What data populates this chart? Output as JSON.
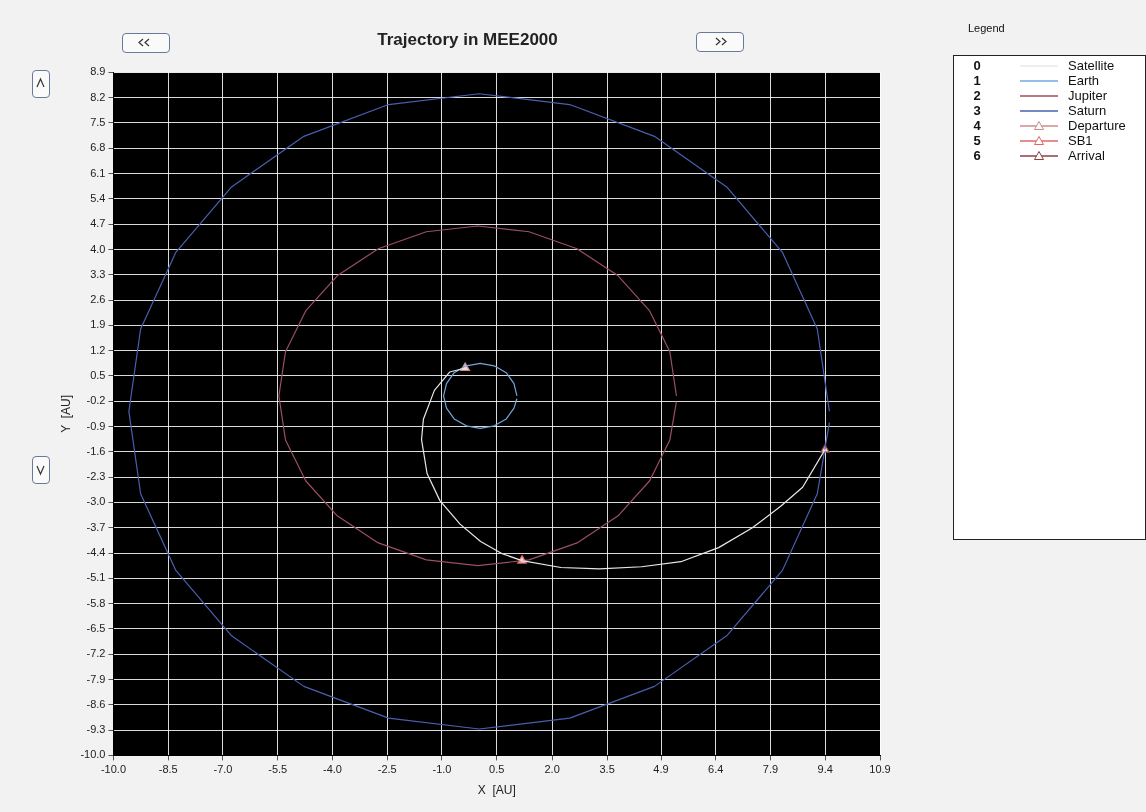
{
  "chart_data": {
    "type": "line",
    "title": "Trajectory in MEE2000",
    "xlabel": "X  [AU]",
    "ylabel": "Y  [AU]",
    "legend_title": "Legend",
    "legend": "right",
    "grid": true,
    "annotations": [
      "0",
      "1",
      "2",
      "3",
      "4",
      "5",
      "6"
    ],
    "marker": "none",
    "line_style": "solid",
    "xlim": [
      -10,
      10.9
    ],
    "ylim": [
      -10,
      8.9
    ],
    "xticks": [
      {
        "value": -10,
        "label": "-10.0"
      },
      {
        "value": -8.507,
        "label": "-8.5"
      },
      {
        "value": -7.014,
        "label": "-7.0"
      },
      {
        "value": -5.521,
        "label": "-5.5"
      },
      {
        "value": -4.029,
        "label": "-4.0"
      },
      {
        "value": -2.536,
        "label": "-2.5"
      },
      {
        "value": -1.043,
        "label": "-1.0"
      },
      {
        "value": 0.45,
        "label": "0.5"
      },
      {
        "value": 1.96,
        "label": "2.0"
      },
      {
        "value": 3.46,
        "label": "3.5"
      },
      {
        "value": 4.929,
        "label": "4.9"
      },
      {
        "value": 6.421,
        "label": "6.4"
      },
      {
        "value": 7.914,
        "label": "7.9"
      },
      {
        "value": 9.407,
        "label": "9.4"
      },
      {
        "value": 10.9,
        "label": "10.9"
      }
    ],
    "yticks": [
      {
        "value": 8.9,
        "label": "8.9"
      },
      {
        "value": 8.2,
        "label": "8.2"
      },
      {
        "value": 7.5,
        "label": "7.5"
      },
      {
        "value": 6.8,
        "label": "6.8"
      },
      {
        "value": 6.1,
        "label": "6.1"
      },
      {
        "value": 5.4,
        "label": "5.4"
      },
      {
        "value": 4.7,
        "label": "4.7"
      },
      {
        "value": 4.0,
        "label": "4.0"
      },
      {
        "value": 3.3,
        "label": "3.3"
      },
      {
        "value": 2.6,
        "label": "2.6"
      },
      {
        "value": 1.9,
        "label": "1.9"
      },
      {
        "value": 1.2,
        "label": "1.2"
      },
      {
        "value": 0.5,
        "label": "0.5"
      },
      {
        "value": -0.2,
        "label": "-0.2"
      },
      {
        "value": -0.9,
        "label": "-0.9"
      },
      {
        "value": -1.6,
        "label": "-1.6"
      },
      {
        "value": -2.3,
        "label": "-2.3"
      },
      {
        "value": -3.0,
        "label": "-3.0"
      },
      {
        "value": -3.7,
        "label": "-3.7"
      },
      {
        "value": -4.4,
        "label": "-4.4"
      },
      {
        "value": -5.1,
        "label": "-5.1"
      },
      {
        "value": -5.8,
        "label": "-5.8"
      },
      {
        "value": -6.5,
        "label": "-6.5"
      },
      {
        "value": -7.2,
        "label": "-7.2"
      },
      {
        "value": -7.9,
        "label": "-7.9"
      },
      {
        "value": -8.6,
        "label": "-8.6"
      },
      {
        "value": -9.3,
        "label": "-9.3"
      },
      {
        "value": -10.0,
        "label": "-10.0"
      }
    ],
    "series": [
      {
        "name": "Satellite",
        "color": "#e8e8e8",
        "x": [
          -0.41,
          -0.83,
          -1.25,
          -1.55,
          -1.6,
          -1.45,
          -1.1,
          -0.55,
          0.01,
          0.6,
          1.14,
          2.2,
          3.25,
          4.4,
          5.47,
          6.5,
          7.41,
          8.2,
          8.79,
          9.4
        ],
        "values": [
          0.72,
          0.61,
          0.1,
          -0.7,
          -1.26,
          -2.2,
          -2.95,
          -3.6,
          -4.08,
          -4.42,
          -4.61,
          -4.8,
          -4.84,
          -4.78,
          -4.64,
          -4.25,
          -3.71,
          -3.1,
          -2.58,
          -1.54
        ]
      },
      {
        "name": "Earth",
        "color": "#6fa8dc",
        "x": [
          1,
          0.92,
          0.71,
          0.38,
          0,
          -0.38,
          -0.71,
          -0.92,
          -1,
          -0.92,
          -0.71,
          -0.38,
          0,
          0.38,
          0.71,
          0.92,
          1
        ],
        "values": [
          -0.05,
          0.29,
          0.59,
          0.78,
          0.85,
          0.78,
          0.59,
          0.29,
          -0.05,
          -0.39,
          -0.69,
          -0.88,
          -0.95,
          -0.88,
          -0.69,
          -0.39,
          -0.13
        ]
      },
      {
        "name": "Jupiter",
        "color": "#9b4f5f",
        "x": [
          5.35,
          5.17,
          4.62,
          3.76,
          2.64,
          1.33,
          -0.07,
          -1.47,
          -2.78,
          -3.9,
          -4.76,
          -5.31,
          -5.49,
          -5.31,
          -4.76,
          -3.9,
          -2.78,
          -1.47,
          -0.07,
          1.33,
          2.64,
          3.76,
          4.62,
          5.17,
          5.35
        ],
        "values": [
          -0.05,
          1.17,
          2.3,
          3.27,
          4.02,
          4.49,
          4.65,
          4.49,
          4.02,
          3.27,
          2.3,
          1.17,
          -0.05,
          -1.27,
          -2.4,
          -3.37,
          -4.12,
          -4.59,
          -4.75,
          -4.59,
          -4.12,
          -3.37,
          -2.4,
          -1.27,
          -0.21
        ]
      },
      {
        "name": "Saturn",
        "color": "#4a5fb0",
        "x": [
          9.52,
          9.19,
          8.24,
          6.72,
          4.75,
          2.44,
          -0.03,
          -2.5,
          -4.81,
          -6.78,
          -8.3,
          -9.26,
          -9.58,
          -9.26,
          -8.3,
          -6.78,
          -4.81,
          -2.5,
          -0.03,
          2.44,
          4.75,
          6.72,
          8.24,
          9.19,
          9.52
        ],
        "values": [
          -0.48,
          1.8,
          3.92,
          5.73,
          7.13,
          8.01,
          8.31,
          8.01,
          7.13,
          5.73,
          3.92,
          1.8,
          -0.48,
          -2.76,
          -4.88,
          -6.69,
          -8.09,
          -8.97,
          -9.27,
          -8.97,
          -8.09,
          -6.69,
          -4.88,
          -2.76,
          -0.79
        ]
      },
      {
        "name": "Departure",
        "type": "scatter",
        "marker": "triangle",
        "color": "#d08a8a",
        "x": [
          -0.41
        ],
        "values": [
          0.72
        ]
      },
      {
        "name": "SB1",
        "type": "scatter",
        "marker": "triangle",
        "color": "#e06666",
        "x": [
          1.14
        ],
        "values": [
          -4.61
        ]
      },
      {
        "name": "Arrival",
        "type": "scatter",
        "marker": "triangle",
        "color": "#8b4040",
        "x": [
          9.4
        ],
        "values": [
          -1.54
        ]
      }
    ]
  }
}
